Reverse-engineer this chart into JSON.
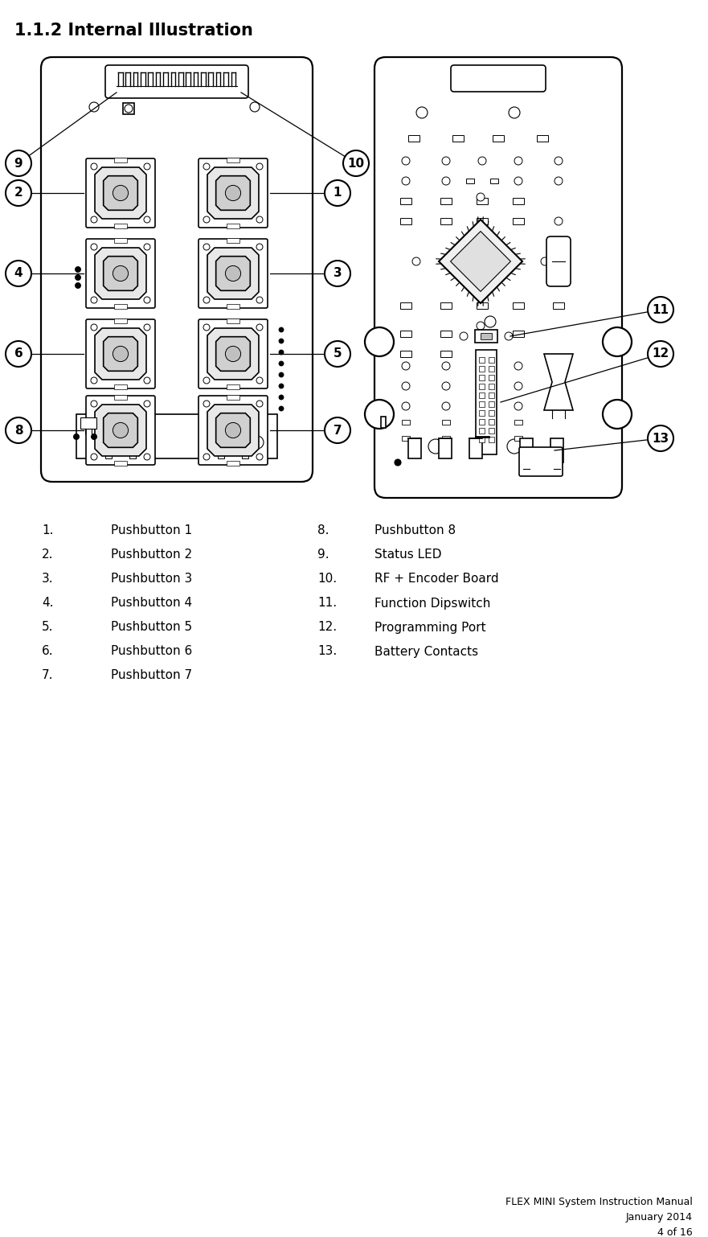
{
  "title": "1.1.2 Internal Illustration",
  "title_fontsize": 15,
  "footer_lines": [
    "FLEX MINI System Instruction Manual",
    "January 2014",
    "4 of 16"
  ],
  "footer_fontsize": 9,
  "legend_left": [
    {
      "num": "1.",
      "label": "Pushbutton 1"
    },
    {
      "num": "2.",
      "label": "Pushbutton 2"
    },
    {
      "num": "3.",
      "label": "Pushbutton 3"
    },
    {
      "num": "4.",
      "label": "Pushbutton 4"
    },
    {
      "num": "5.",
      "label": "Pushbutton 5"
    },
    {
      "num": "6.",
      "label": "Pushbutton 6"
    },
    {
      "num": "7.",
      "label": "Pushbutton 7"
    }
  ],
  "legend_right": [
    {
      "num": "8.",
      "label": "Pushbutton 8"
    },
    {
      "num": "9.",
      "label": "Status LED"
    },
    {
      "num": "10.",
      "label": "RF + Encoder Board"
    },
    {
      "num": "11.",
      "label": "Function Dipswitch"
    },
    {
      "num": "12.",
      "label": "Programming Port"
    },
    {
      "num": "13.",
      "label": "Battery Contacts"
    }
  ],
  "bg_color": "#ffffff",
  "line_color": "#1a1a1a",
  "label_fontsize": 11,
  "callout_fontsize": 11
}
